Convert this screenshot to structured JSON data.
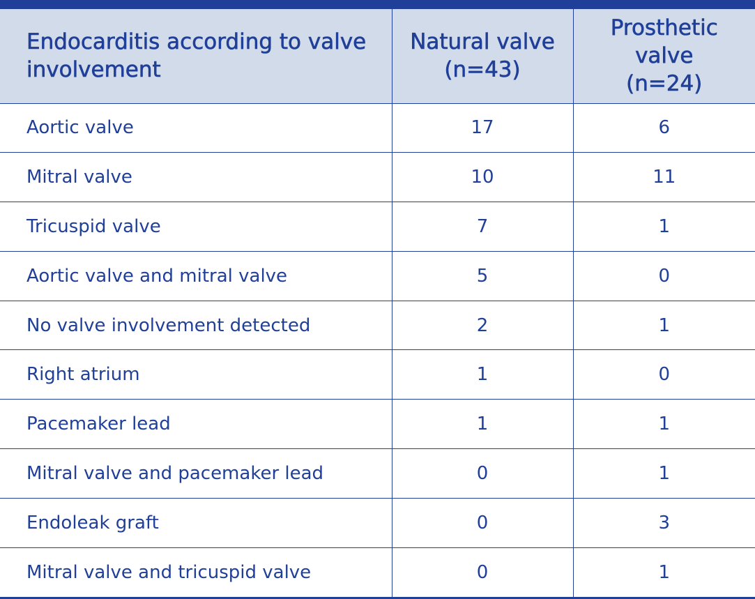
{
  "table": {
    "headers": {
      "col1": "Endocarditis according to valve involvement",
      "col2_line1": "Natural valve",
      "col2_line2": "(n=43)",
      "col3_line1": "Prosthetic",
      "col3_line2": "valve",
      "col3_line3": "(n=24)"
    },
    "rows": [
      {
        "label": "Aortic valve",
        "natural": "17",
        "prosthetic": "6"
      },
      {
        "label": "Mitral valve",
        "natural": "10",
        "prosthetic": "11"
      },
      {
        "label": "Tricuspid valve",
        "natural": "7",
        "prosthetic": "1"
      },
      {
        "label": "Aortic valve and mitral valve",
        "natural": "5",
        "prosthetic": "0"
      },
      {
        "label": "No valve involvement detected",
        "natural": "2",
        "prosthetic": "1"
      },
      {
        "label": "Right atrium",
        "natural": "1",
        "prosthetic": "0"
      },
      {
        "label": "Pacemaker lead",
        "natural": "1",
        "prosthetic": "1"
      },
      {
        "label": "Mitral valve and pacemaker lead",
        "natural": "0",
        "prosthetic": "1"
      },
      {
        "label": "Endoleak graft",
        "natural": "0",
        "prosthetic": "3"
      },
      {
        "label": "Mitral valve and tricuspid valve",
        "natural": "0",
        "prosthetic": "1"
      }
    ]
  },
  "colors": {
    "text": "#1f3f99",
    "header_bg": "#d2dbea",
    "rule": "#1f3f99"
  }
}
